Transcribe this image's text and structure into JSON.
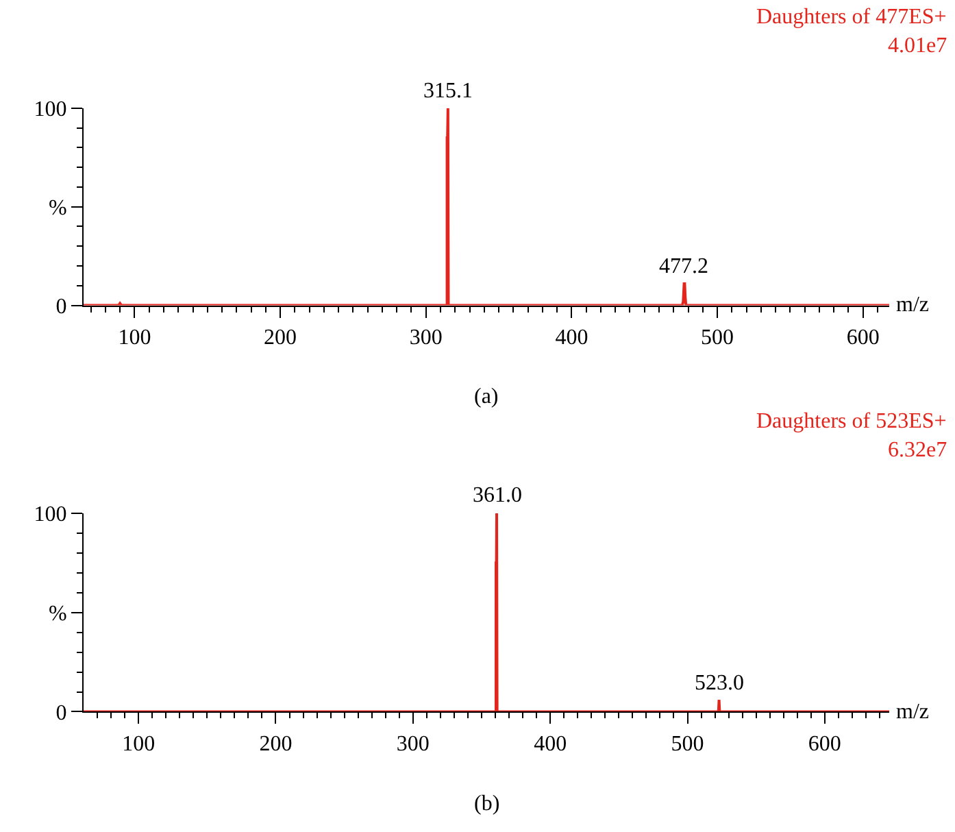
{
  "chart_data": [
    {
      "type": "line",
      "title": "Daughters of 477ES+",
      "subtitle": "4.01e7",
      "xlabel": "m/z",
      "color": "#e2261d",
      "x": [
        65,
        89,
        90,
        91,
        314.3,
        314.5,
        314.5,
        314.8,
        315.1,
        315.4,
        316,
        476,
        476.6,
        477.2,
        477.6,
        478,
        478.5,
        618
      ],
      "values": [
        0,
        0,
        1,
        0,
        0,
        0,
        85,
        85,
        100,
        0,
        0,
        0,
        2,
        11,
        11,
        4,
        0,
        0
      ],
      "xlim": [
        65,
        618
      ],
      "ylim": [
        0,
        100
      ],
      "xticks": [
        {
          "value": 70,
          "label": null
        },
        {
          "value": 80,
          "label": null
        },
        {
          "value": 90,
          "label": null
        },
        100,
        {
          "value": 110,
          "label": null
        },
        {
          "value": 120,
          "label": null
        },
        {
          "value": 130,
          "label": null
        },
        {
          "value": 140,
          "label": null
        },
        {
          "value": 150,
          "label": null
        },
        {
          "value": 160,
          "label": null
        },
        {
          "value": 170,
          "label": null
        },
        {
          "value": 180,
          "label": null
        },
        {
          "value": 190,
          "label": null
        },
        200,
        {
          "value": 210,
          "label": null
        },
        {
          "value": 220,
          "label": null
        },
        {
          "value": 230,
          "label": null
        },
        {
          "value": 240,
          "label": null
        },
        {
          "value": 250,
          "label": null
        },
        {
          "value": 260,
          "label": null
        },
        {
          "value": 270,
          "label": null
        },
        {
          "value": 280,
          "label": null
        },
        {
          "value": 290,
          "label": null
        },
        300,
        {
          "value": 310,
          "label": null
        },
        {
          "value": 320,
          "label": null
        },
        {
          "value": 330,
          "label": null
        },
        {
          "value": 340,
          "label": null
        },
        {
          "value": 350,
          "label": null
        },
        {
          "value": 360,
          "label": null
        },
        {
          "value": 370,
          "label": null
        },
        {
          "value": 380,
          "label": null
        },
        {
          "value": 390,
          "label": null
        },
        400,
        {
          "value": 410,
          "label": null
        },
        {
          "value": 420,
          "label": null
        },
        {
          "value": 430,
          "label": null
        },
        {
          "value": 440,
          "label": null
        },
        {
          "value": 450,
          "label": null
        },
        {
          "value": 460,
          "label": null
        },
        {
          "value": 470,
          "label": null
        },
        {
          "value": 480,
          "label": null
        },
        {
          "value": 490,
          "label": null
        },
        500,
        {
          "value": 510,
          "label": null
        },
        {
          "value": 520,
          "label": null
        },
        {
          "value": 530,
          "label": null
        },
        {
          "value": 540,
          "label": null
        },
        {
          "value": 550,
          "label": null
        },
        {
          "value": 560,
          "label": null
        },
        {
          "value": 570,
          "label": null
        },
        {
          "value": 580,
          "label": null
        },
        {
          "value": 590,
          "label": null
        },
        600,
        {
          "value": 610,
          "label": null
        }
      ],
      "yticks": [
        0,
        {
          "value": 10,
          "label": null
        },
        {
          "value": 20,
          "label": null
        },
        {
          "value": 30,
          "label": null
        },
        {
          "value": 40,
          "label": null
        },
        {
          "value": 50,
          "label": "%"
        },
        {
          "value": 60,
          "label": null
        },
        {
          "value": 70,
          "label": null
        },
        {
          "value": 80,
          "label": null
        },
        {
          "value": 90,
          "label": null
        },
        100
      ],
      "annotations": [
        {
          "text": "315.1",
          "x": 315.1,
          "y": 100
        },
        {
          "text": "477.2",
          "x": 477.2,
          "y": 11
        },
        "(a)"
      ]
    },
    {
      "type": "line",
      "title": "Daughters of 523ES+",
      "subtitle": "6.32e7",
      "xlabel": "m/z",
      "color": "#e2261d",
      "x": [
        60,
        360.5,
        360.5,
        360.8,
        361.0,
        361.3,
        522.6,
        523,
        523.4,
        647
      ],
      "values": [
        0,
        0,
        75,
        75,
        100,
        0,
        0,
        6,
        0,
        0
      ],
      "xlim": [
        60,
        647
      ],
      "ylim": [
        0,
        100
      ],
      "xticks": [
        {
          "value": 70,
          "label": null
        },
        {
          "value": 80,
          "label": null
        },
        {
          "value": 90,
          "label": null
        },
        100,
        {
          "value": 110,
          "label": null
        },
        {
          "value": 120,
          "label": null
        },
        {
          "value": 130,
          "label": null
        },
        {
          "value": 140,
          "label": null
        },
        {
          "value": 150,
          "label": null
        },
        {
          "value": 160,
          "label": null
        },
        {
          "value": 170,
          "label": null
        },
        {
          "value": 180,
          "label": null
        },
        {
          "value": 190,
          "label": null
        },
        200,
        {
          "value": 210,
          "label": null
        },
        {
          "value": 220,
          "label": null
        },
        {
          "value": 230,
          "label": null
        },
        {
          "value": 240,
          "label": null
        },
        {
          "value": 250,
          "label": null
        },
        {
          "value": 260,
          "label": null
        },
        {
          "value": 270,
          "label": null
        },
        {
          "value": 280,
          "label": null
        },
        {
          "value": 290,
          "label": null
        },
        300,
        {
          "value": 310,
          "label": null
        },
        {
          "value": 320,
          "label": null
        },
        {
          "value": 330,
          "label": null
        },
        {
          "value": 340,
          "label": null
        },
        {
          "value": 350,
          "label": null
        },
        {
          "value": 360,
          "label": null
        },
        {
          "value": 370,
          "label": null
        },
        {
          "value": 380,
          "label": null
        },
        {
          "value": 390,
          "label": null
        },
        400,
        {
          "value": 410,
          "label": null
        },
        {
          "value": 420,
          "label": null
        },
        {
          "value": 430,
          "label": null
        },
        {
          "value": 440,
          "label": null
        },
        {
          "value": 450,
          "label": null
        },
        {
          "value": 460,
          "label": null
        },
        {
          "value": 470,
          "label": null
        },
        {
          "value": 480,
          "label": null
        },
        {
          "value": 490,
          "label": null
        },
        500,
        {
          "value": 510,
          "label": null
        },
        {
          "value": 520,
          "label": null
        },
        {
          "value": 530,
          "label": null
        },
        {
          "value": 540,
          "label": null
        },
        {
          "value": 550,
          "label": null
        },
        {
          "value": 560,
          "label": null
        },
        {
          "value": 570,
          "label": null
        },
        {
          "value": 580,
          "label": null
        },
        {
          "value": 590,
          "label": null
        },
        600,
        {
          "value": 610,
          "label": null
        },
        {
          "value": 620,
          "label": null
        },
        {
          "value": 630,
          "label": null
        },
        {
          "value": 640,
          "label": null
        }
      ],
      "yticks": [
        0,
        {
          "value": 10,
          "label": null
        },
        {
          "value": 20,
          "label": null
        },
        {
          "value": 30,
          "label": null
        },
        {
          "value": 40,
          "label": null
        },
        {
          "value": 50,
          "label": "%"
        },
        {
          "value": 60,
          "label": null
        },
        {
          "value": 70,
          "label": null
        },
        {
          "value": 80,
          "label": null
        },
        {
          "value": 90,
          "label": null
        },
        100
      ],
      "annotations": [
        {
          "text": "361.0",
          "x": 361.0,
          "y": 100
        },
        {
          "text": "523.0",
          "x": 523.0,
          "y": 6
        },
        "(b)"
      ]
    }
  ]
}
